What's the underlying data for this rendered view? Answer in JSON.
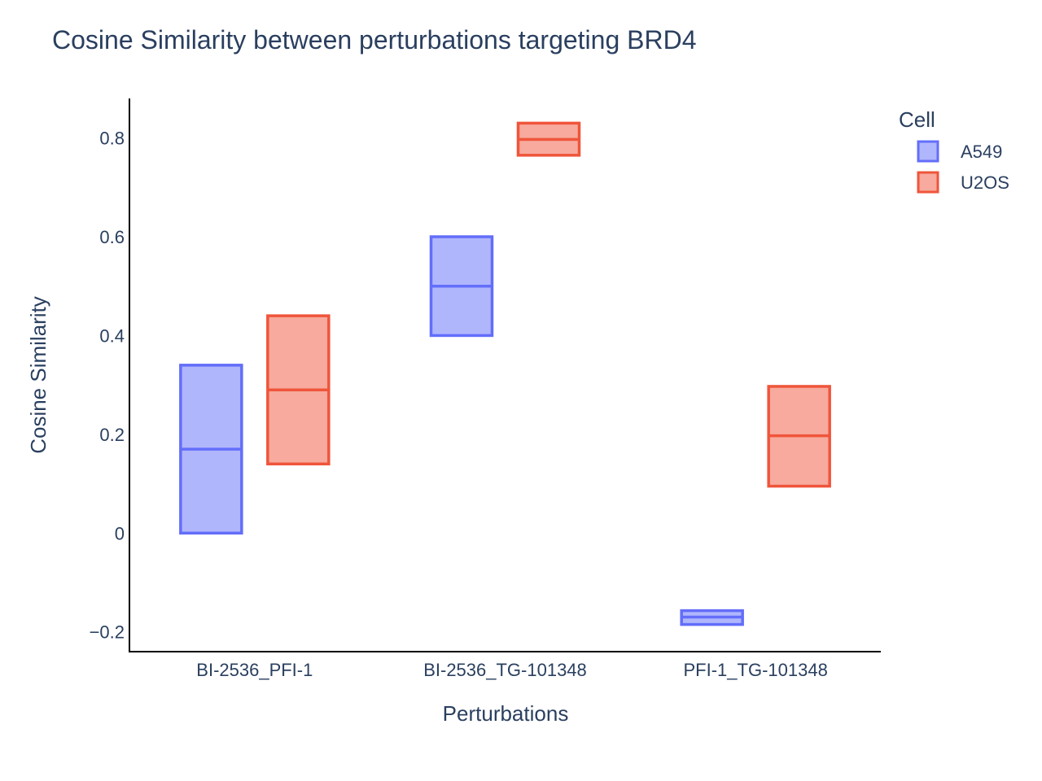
{
  "chart_data": {
    "type": "box",
    "title": "Cosine Similarity between perturbations targeting BRD4",
    "xlabel": "Perturbations",
    "ylabel": "Cosine Similarity",
    "categories": [
      "BI-2536_PFI-1",
      "BI-2536_TG-101348",
      "PFI-1_TG-101348"
    ],
    "ylim": [
      -0.24,
      0.88
    ],
    "yticks": [
      -0.2,
      0,
      0.2,
      0.4,
      0.6,
      0.8
    ],
    "ytick_labels": [
      "−0.2",
      "0",
      "0.2",
      "0.4",
      "0.6",
      "0.8"
    ],
    "grid": false,
    "legend": {
      "title": "Cell",
      "placement": "top-right"
    },
    "series": [
      {
        "name": "A549",
        "color": "#636efa",
        "fill": "#b0b6fc",
        "boxes": [
          {
            "category": "BI-2536_PFI-1",
            "q1": 0.0,
            "median": 0.17,
            "q3": 0.34
          },
          {
            "category": "BI-2536_TG-101348",
            "q1": 0.4,
            "median": 0.5,
            "q3": 0.6
          },
          {
            "category": "PFI-1_TG-101348",
            "q1": -0.185,
            "median": -0.17,
            "q3": -0.157
          }
        ]
      },
      {
        "name": "U2OS",
        "color": "#ef553b",
        "fill": "#f7aa9d",
        "boxes": [
          {
            "category": "BI-2536_PFI-1",
            "q1": 0.14,
            "median": 0.29,
            "q3": 0.44
          },
          {
            "category": "BI-2536_TG-101348",
            "q1": 0.765,
            "median": 0.797,
            "q3": 0.83
          },
          {
            "category": "PFI-1_TG-101348",
            "q1": 0.095,
            "median": 0.197,
            "q3": 0.297
          }
        ]
      }
    ]
  }
}
